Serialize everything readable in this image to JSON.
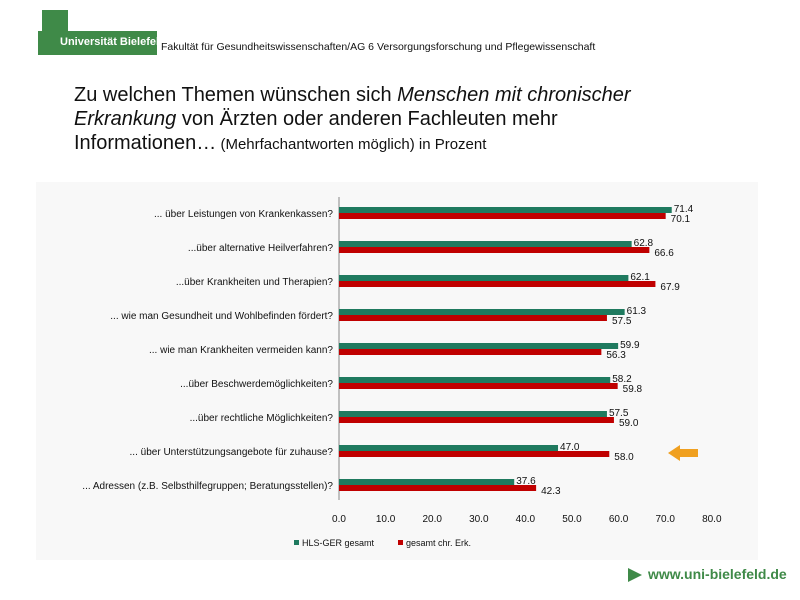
{
  "header": {
    "logo_text": "Universität Bielefeld",
    "faculty": "Fakultät für Gesundheitswissenschaften/AG 6 Versorgungsforschung und Pflegewissenschaft"
  },
  "title": {
    "line1_a": "Zu welchen Themen wünschen sich ",
    "line1_em": "Menschen mit chronischer",
    "line2_em": "Erkrankung",
    "line2_b": " von Ärzten oder anderen Fachleuten mehr",
    "line3": "Informationen…",
    "line3_small": " (Mehrfachantworten möglich) in Prozent"
  },
  "chart_data": {
    "type": "bar",
    "orientation": "horizontal",
    "categories": [
      "... über Leistungen von Krankenkassen?",
      "...über alternative Heilverfahren?",
      "...über Krankheiten und Therapien?",
      "... wie man Gesundheit und Wohlbefinden fördert?",
      "... wie man Krankheiten vermeiden kann?",
      "...über Beschwerdemöglichkeiten?",
      "...über rechtliche Möglichkeiten?",
      "... über Unterstützungsangebote für zuhause?",
      "... Adressen (z.B. Selbsthilfegruppen; Beratungsstellen)?"
    ],
    "series": [
      {
        "name": "HLS-GER gesamt",
        "color": "#1f7a5f",
        "values": [
          71.4,
          62.8,
          62.1,
          61.3,
          59.9,
          58.2,
          57.5,
          47.0,
          37.6
        ],
        "labels": [
          "71.4",
          "62.8",
          "62.1",
          "61.3",
          "59.9",
          "58.2",
          "57.5",
          "47.0",
          "37.6"
        ]
      },
      {
        "name": "gesamt chr. Erk.",
        "color": "#c00000",
        "values": [
          70.1,
          66.6,
          67.9,
          57.5,
          56.3,
          59.8,
          59.0,
          58.0,
          42.3
        ],
        "labels": [
          "70.1",
          "66.6",
          "67.9",
          "57.5",
          "56.3",
          "59.8",
          "59.0",
          "58.0",
          "42.3"
        ]
      }
    ],
    "xlim": [
      0,
      80
    ],
    "xticks": [
      "0.0",
      "10.0",
      "20.0",
      "30.0",
      "40.0",
      "50.0",
      "60.0",
      "70.0",
      "80.0"
    ],
    "legend_position": "bottom-left",
    "highlight_arrow_category": 7,
    "highlight_arrow_color": "#f0a020"
  },
  "footer": {
    "url": "www.uni-bielefeld.de"
  }
}
